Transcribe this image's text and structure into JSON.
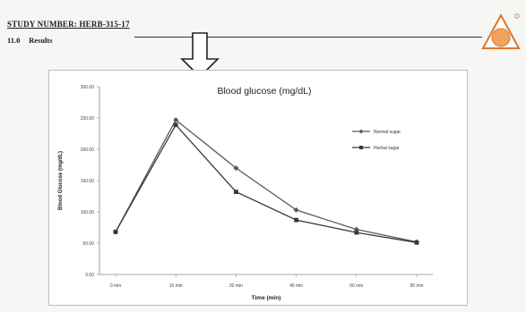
{
  "header": {
    "study_number": "STUDY NUMBER: HERB-315-17",
    "section_number": "11.0",
    "section_title": "Results"
  },
  "colors": {
    "series_1": "#5a5a5a",
    "series_2": "#3a3a3a",
    "logo_accent": "#e0762a"
  },
  "icons": {
    "logo": "brand-logo-icon",
    "arrow": "down-arrow-icon"
  },
  "chart_data": {
    "type": "line",
    "title": "Blood glucose (mg/dL)",
    "xlabel": "Time (min)",
    "ylabel": "Blood Glucose (mg/dL)",
    "categories": [
      "0 min",
      "15 min",
      "30 min",
      "45 min",
      "60 min",
      "90 min"
    ],
    "ylim": [
      0,
      300
    ],
    "yticks": [
      "0.00",
      "50.00",
      "100.00",
      "150.00",
      "200.00",
      "250.00",
      "300.00"
    ],
    "grid": false,
    "legend_position": "right",
    "series": [
      {
        "name": "Normal sugar",
        "values": [
          68,
          247,
          170,
          103,
          72,
          52
        ],
        "marker": "diamond"
      },
      {
        "name": "Herbal sugar",
        "values": [
          68,
          239,
          132,
          87,
          67,
          51
        ],
        "marker": "square"
      }
    ]
  }
}
